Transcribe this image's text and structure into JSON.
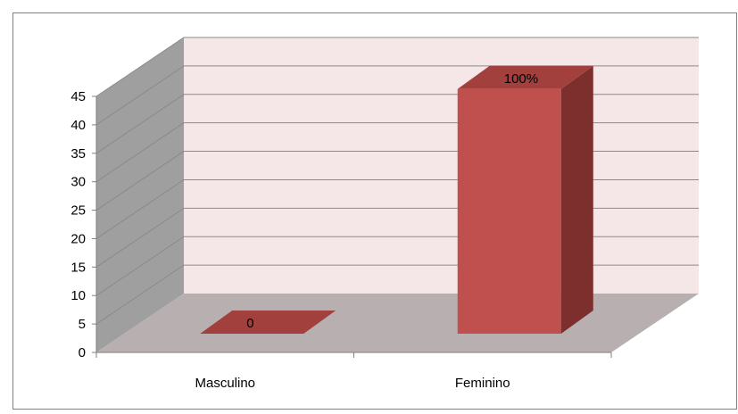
{
  "chart_data": {
    "type": "bar",
    "categories": [
      "Masculino",
      "Feminino"
    ],
    "values": [
      0,
      43
    ],
    "data_labels": [
      "0",
      "100%"
    ],
    "ylim": [
      0,
      45
    ],
    "yticks": [
      "0",
      "5",
      "10",
      "15",
      "20",
      "25",
      "30",
      "35",
      "40",
      "45"
    ],
    "grid": true,
    "legend": "none",
    "colors": {
      "bar_front": "#c0504d",
      "bar_top": "#a1403d",
      "bar_side": "#7c2f2d",
      "back_wall": "#f5e7e7",
      "side_wall": "#9f9f9f",
      "floor": "#b8b0b0",
      "gridline": "#8a8a8a"
    }
  }
}
